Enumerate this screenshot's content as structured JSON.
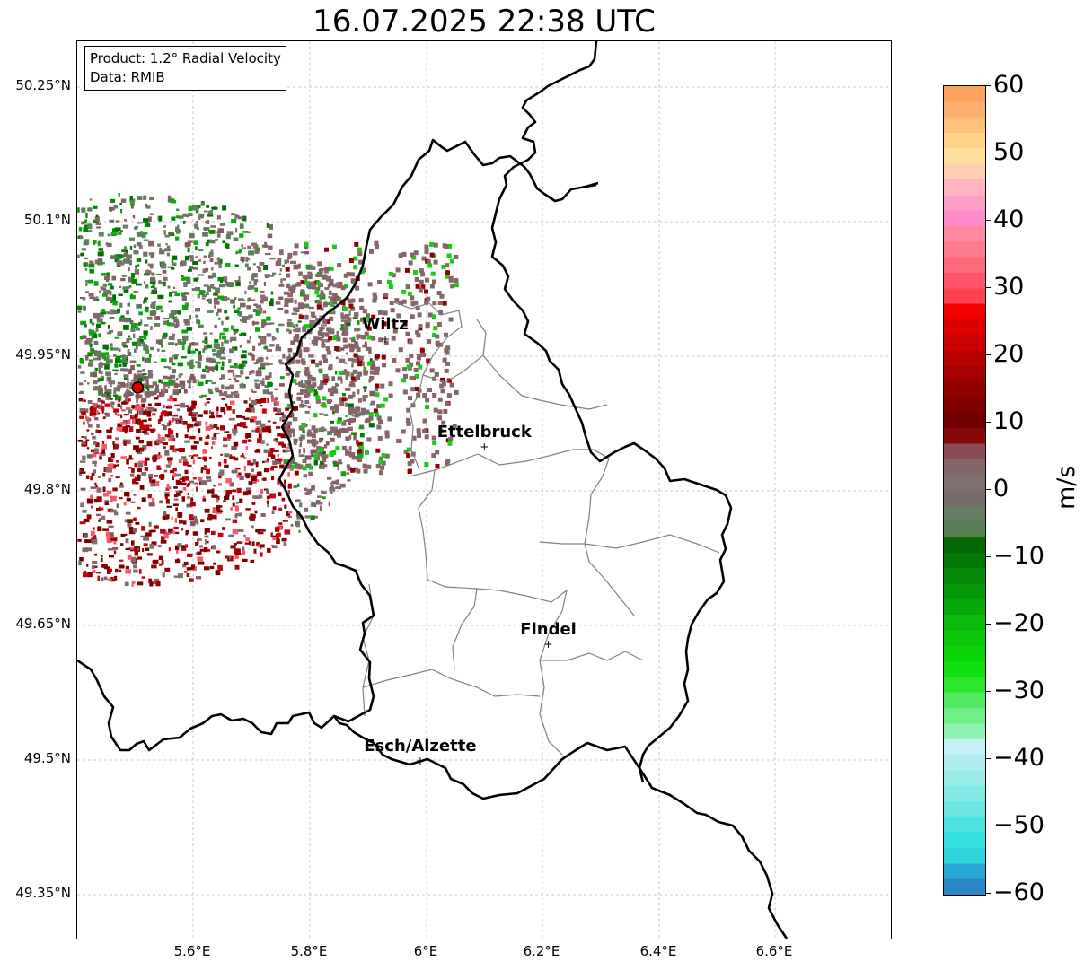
{
  "title": "16.07.2025 22:38 UTC",
  "info": {
    "product": "Product: 1.2° Radial Velocity",
    "data": "Data: RMIB"
  },
  "lat_ticks": [
    "50.25°N",
    "50.1°N",
    "49.95°N",
    "49.8°N",
    "49.65°N",
    "49.5°N",
    "49.35°N"
  ],
  "lon_ticks": [
    "5.6°E",
    "5.8°E",
    "6°E",
    "6.2°E",
    "6.4°E",
    "6.6°E"
  ],
  "cities": [
    {
      "name": "Wiltz",
      "lon": 5.93,
      "lat": 49.97
    },
    {
      "name": "Ettelbruck",
      "lon": 6.1,
      "lat": 49.85
    },
    {
      "name": "Findel",
      "lon": 6.21,
      "lat": 49.63
    },
    {
      "name": "Esch/Alzette",
      "lon": 5.99,
      "lat": 49.5
    }
  ],
  "radar_site": {
    "lon": 5.505,
    "lat": 49.915
  },
  "colorbar": {
    "label": "m/s",
    "ticks": [
      "60",
      "50",
      "40",
      "30",
      "20",
      "10",
      "0",
      "−10",
      "−20",
      "−30",
      "−40",
      "−50",
      "−60"
    ],
    "min": -60,
    "max": 60,
    "colors": [
      "#2a85c4",
      "#2aa8d4",
      "#2cd4dc",
      "#35e0e0",
      "#4de4e0",
      "#6ae6e2",
      "#84e8e4",
      "#9aeae6",
      "#b0eeee",
      "#c2f2f2",
      "#8ef2b0",
      "#70ef84",
      "#52ea62",
      "#2de62c",
      "#10e010",
      "#0cd40c",
      "#0cc80c",
      "#0aba0a",
      "#08a808",
      "#069806",
      "#058805",
      "#047804",
      "#036803",
      "#5a8058",
      "#647c60",
      "#766b6a",
      "#7e6e6e",
      "#866468",
      "#8a4c54",
      "#860808",
      "#700000",
      "#800000",
      "#900000",
      "#a40000",
      "#b80000",
      "#cc0000",
      "#e00000",
      "#f40000",
      "#ff4050",
      "#ff5468",
      "#ff6a7a",
      "#ff7a8c",
      "#ff8aa0",
      "#ff8cc8",
      "#ffa0c8",
      "#ffb4be",
      "#ffd0b0",
      "#ffe09c",
      "#ffd28a",
      "#ffc07c",
      "#ffb070",
      "#ffa260"
    ]
  }
}
